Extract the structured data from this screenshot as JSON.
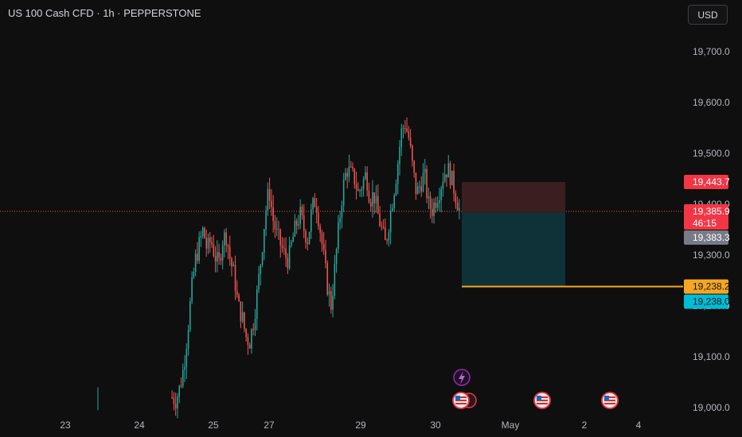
{
  "header": {
    "title": "US 100 Cash CFD · 1h · PEPPERSTONE",
    "currency": "USD"
  },
  "colors": {
    "up": "#26a69a",
    "down": "#ef5350",
    "background": "#0f0f0f",
    "stop_zone": "#3a1e20",
    "target_zone": "#0e3237",
    "target_line": "#f5a623",
    "price_line": "#ef5350"
  },
  "price_badges": {
    "stop": "19,443.7",
    "last": "19,385.9",
    "countdown": "46:15",
    "entry": "19,383.3",
    "target_line": "19,238.2",
    "target": "19,238.0"
  },
  "events": {
    "flash_icon": "lightning-bolt",
    "flag_icon": "us-flag"
  },
  "chart_data": {
    "type": "candlestick",
    "title": "US 100 Cash CFD · 1h · PEPPERSTONE",
    "y_ticks": [
      "19,000.0",
      "19,100.0",
      "19,200.0",
      "19,300.0",
      "19,400.0",
      "19,500.0",
      "19,600.0",
      "19,700.0"
    ],
    "x_ticks": [
      "23",
      "24",
      "25",
      "27",
      "29",
      "30",
      "May",
      "2",
      "4"
    ],
    "ylim": [
      18990,
      19770
    ],
    "grid": false,
    "path": [
      19020,
      19015,
      19040,
      19080,
      19150,
      19230,
      19290,
      19320,
      19350,
      19310,
      19330,
      19300,
      19280,
      19330,
      19340,
      19290,
      19260,
      19200,
      19180,
      19140,
      19130,
      19170,
      19230,
      19300,
      19380,
      19430,
      19370,
      19340,
      19320,
      19300,
      19290,
      19330,
      19360,
      19380,
      19350,
      19330,
      19390,
      19410,
      19360,
      19300,
      19240,
      19200,
      19280,
      19360,
      19430,
      19470,
      19460,
      19450,
      19420,
      19440,
      19460,
      19410,
      19420,
      19380,
      19350,
      19320,
      19370,
      19420,
      19470,
      19540,
      19560,
      19530,
      19470,
      19420,
      19440,
      19460,
      19400,
      19390,
      19410,
      19430,
      19460,
      19470,
      19450,
      19420,
      19390
    ],
    "position": {
      "side": "short",
      "entry": 19383.3,
      "stop": 19443.7,
      "target": 19238.0
    },
    "last_price": 19385.9
  }
}
